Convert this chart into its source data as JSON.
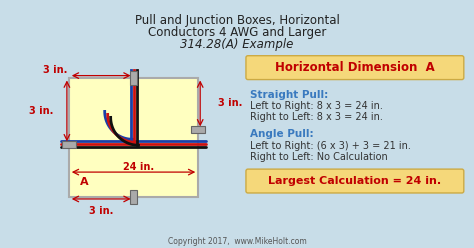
{
  "title_line1": "Pull and Junction Boxes, Horizontal",
  "title_line2": "Conductors 4 AWG and Larger",
  "title_line3": "314.28(A) Example",
  "bg_color": "#c8dde8",
  "box_fill": "#ffffc0",
  "box_stroke": "#cccc88",
  "header_label": "Horizontal Dimension  A",
  "header_bg": "#f5d87a",
  "straight_pull_label": "Straight Pull:",
  "straight_pull_line1": "Left to Right: 8 x 3 = 24 in.",
  "straight_pull_line2": "Right to Left: 8 x 3 = 24 in.",
  "angle_pull_label": "Angle Pull:",
  "angle_pull_line1": "Left to Right: (6 x 3) + 3 = 21 in.",
  "angle_pull_line2": "Right to Left: No Calculation",
  "largest_label": "Largest Calculation = 24 in.",
  "largest_bg": "#f5d87a",
  "dim_3in_top": "3 in.",
  "dim_3in_right": "3 in.",
  "dim_3in_left": "3 in.",
  "dim_3in_bottom": "3 in.",
  "dim_24in": "24 in.",
  "dim_A": "A",
  "copyright": "Copyright 2017,  www.MikeHolt.com",
  "accent_color": "#3a7abf",
  "orange_color": "#e87722",
  "dark_text": "#333333",
  "crimson": "#c00000"
}
